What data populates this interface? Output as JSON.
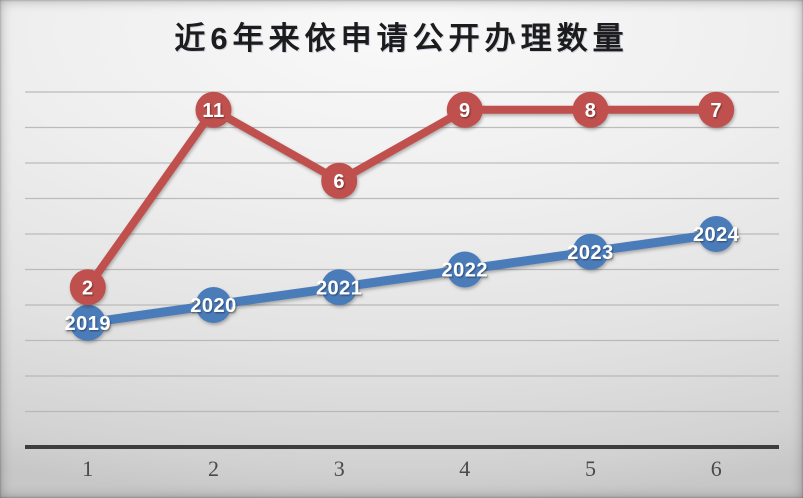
{
  "slide": {
    "title": "近6年来依申请公开办理数量"
  },
  "chart_data": {
    "type": "line",
    "stacked": true,
    "title": "近6年来依申请公开办理数量",
    "categories": [
      "1",
      "2",
      "3",
      "4",
      "5",
      "6"
    ],
    "series": [
      {
        "name": "year-series",
        "stack": false,
        "values": [
          2019,
          2020,
          2021,
          2022,
          2023,
          2024
        ],
        "labels": [
          "2019",
          "2020",
          "2021",
          "2022",
          "2023",
          "2024"
        ],
        "color": "#4b7cba",
        "line_width": 9,
        "marker_radius": 18
      },
      {
        "name": "count-series",
        "stack": true,
        "values": [
          2,
          11,
          6,
          9,
          8,
          7
        ],
        "labels": [
          "2",
          "11",
          "6",
          "9",
          "8",
          "7"
        ],
        "color": "#c0504d",
        "line_width": 8,
        "marker_radius": 18
      }
    ],
    "xlabel": "",
    "ylabel": "",
    "ylim": [
      2012,
      2032
    ],
    "gridline_step": 2,
    "grid": true,
    "legend": "none",
    "marker_label_color": "#ffffff",
    "colors": {
      "gridline": "#b3b3b3",
      "axis": "#3d3d3d",
      "axis_label": "#4a4a4a",
      "title": "#1c1c1c"
    }
  }
}
